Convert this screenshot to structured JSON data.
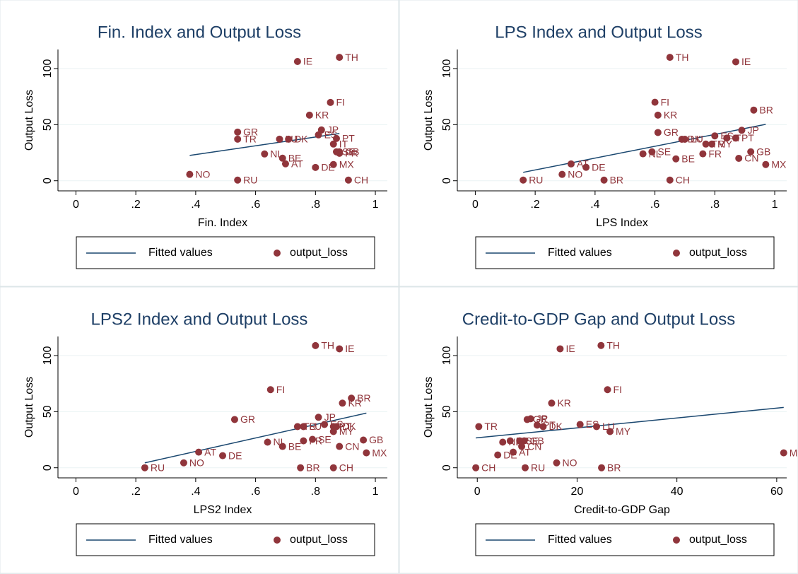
{
  "chart_data": [
    {
      "type": "scatter",
      "title": "Fin. Index and Output Loss",
      "x_label": "Fin. Index",
      "y_label": "Output Loss",
      "xlim": [
        -0.06,
        1.04
      ],
      "ylim": [
        -9,
        117
      ],
      "xticks": [
        0,
        {
          "value": 0.2,
          "label": ".2"
        },
        {
          "value": 0.4,
          "label": ".4"
        },
        {
          "value": 0.6,
          "label": ".6"
        },
        {
          "value": 0.8,
          "label": ".8"
        },
        1
      ],
      "yticks": [
        0,
        50,
        100
      ],
      "grid": true,
      "series": [
        {
          "name": "Fitted values",
          "type": "line",
          "color": "#1a476f",
          "x": [
            0.38,
            0.88
          ],
          "values": [
            22.6,
            42.1
          ]
        },
        {
          "name": "output_loss",
          "type": "scatter",
          "color": "#90353b",
          "labels": [
            "IE",
            "TH",
            "FI",
            "KR",
            "JP",
            "GR",
            "TR",
            "LU",
            "DK",
            "ES",
            "PT",
            "IT",
            "NL",
            "BE",
            "AT",
            "SE",
            "GB",
            "FR",
            "DE",
            "MX",
            "NO",
            "RU",
            "CH"
          ],
          "x": [
            0.74,
            0.88,
            0.85,
            0.78,
            0.82,
            0.54,
            0.54,
            0.68,
            0.71,
            0.81,
            0.87,
            0.86,
            0.63,
            0.69,
            0.7,
            0.87,
            0.88,
            0.88,
            0.8,
            0.86,
            0.38,
            0.54,
            0.91
          ],
          "values": [
            106.3,
            110,
            69.8,
            58.5,
            45.3,
            43.4,
            37.1,
            37.1,
            37.1,
            40.9,
            37.7,
            32.7,
            23.9,
            20.1,
            15.1,
            25.8,
            25.8,
            24.5,
            11.9,
            14.5,
            5.7,
            0.6,
            0.6
          ]
        }
      ]
    },
    {
      "type": "scatter",
      "title": "LPS Index and Output Loss",
      "x_label": "LPS Index",
      "y_label": "Output Loss",
      "xlim": [
        -0.06,
        1.04
      ],
      "ylim": [
        -9,
        117
      ],
      "xticks": [
        0,
        {
          "value": 0.2,
          "label": ".2"
        },
        {
          "value": 0.4,
          "label": ".4"
        },
        {
          "value": 0.6,
          "label": ".6"
        },
        {
          "value": 0.8,
          "label": ".8"
        },
        1
      ],
      "yticks": [
        0,
        50,
        100
      ],
      "grid": true,
      "series": [
        {
          "name": "Fitted values",
          "type": "line",
          "color": "#1a476f",
          "x": [
            0.16,
            0.97
          ],
          "values": [
            7.5,
            50.3
          ]
        },
        {
          "name": "output_loss",
          "type": "scatter",
          "color": "#90353b",
          "labels": [
            "TH",
            "IE",
            "FI",
            "KR",
            "BR",
            "JP",
            "GR",
            "DK",
            "LU",
            "ES",
            "IT",
            "PT",
            "TR",
            "MY",
            "NL",
            "SE",
            "FR",
            "BE",
            "GB",
            "CN",
            "MX",
            "AT",
            "DE",
            "NO",
            "RU",
            "BR",
            "CH"
          ],
          "x": [
            0.65,
            0.87,
            0.6,
            0.61,
            0.93,
            0.89,
            0.61,
            0.69,
            0.7,
            0.8,
            0.84,
            0.87,
            0.77,
            0.79,
            0.56,
            0.59,
            0.76,
            0.67,
            0.92,
            0.88,
            0.97,
            0.32,
            0.37,
            0.29,
            0.16,
            0.43,
            0.65
          ],
          "values": [
            110,
            106,
            70,
            58.5,
            63,
            45,
            43,
            37,
            37,
            40,
            38,
            38,
            32.7,
            32.7,
            24,
            25.8,
            24,
            19.5,
            25.8,
            20,
            14.5,
            15,
            12,
            5.7,
            0.6,
            0.6,
            0.6
          ]
        }
      ]
    },
    {
      "type": "scatter",
      "title": "LPS2 Index and Output Loss",
      "x_label": "LPS2 Index",
      "y_label": "Output Loss",
      "xlim": [
        -0.06,
        1.04
      ],
      "ylim": [
        -9,
        117
      ],
      "xticks": [
        0,
        {
          "value": 0.2,
          "label": ".2"
        },
        {
          "value": 0.4,
          "label": ".4"
        },
        {
          "value": 0.6,
          "label": ".6"
        },
        {
          "value": 0.8,
          "label": ".8"
        },
        1
      ],
      "yticks": [
        0,
        50,
        100
      ],
      "grid": true,
      "series": [
        {
          "name": "Fitted values",
          "type": "line",
          "color": "#1a476f",
          "x": [
            0.23,
            0.97
          ],
          "values": [
            4.4,
            48.7
          ]
        },
        {
          "name": "output_loss",
          "type": "scatter",
          "color": "#90353b",
          "labels": [
            "TH",
            "IE",
            "FI",
            "KR",
            "BR",
            "JP",
            "GR",
            "TR",
            "LU",
            "ES",
            "PT",
            "DK",
            "MY",
            "SE",
            "FR",
            "NL",
            "BE",
            "CN",
            "GB",
            "MX",
            "AT",
            "DE",
            "NO",
            "RU",
            "BR",
            "CH"
          ],
          "x": [
            0.8,
            0.88,
            0.65,
            0.89,
            0.92,
            0.81,
            0.53,
            0.74,
            0.76,
            0.83,
            0.86,
            0.87,
            0.86,
            0.79,
            0.76,
            0.64,
            0.69,
            0.88,
            0.96,
            0.97,
            0.41,
            0.49,
            0.36,
            0.23,
            0.75,
            0.86
          ],
          "values": [
            108.9,
            106,
            69.6,
            57.6,
            62,
            45,
            43,
            36.7,
            36.7,
            38.6,
            36.7,
            36.7,
            32.3,
            25.3,
            24,
            22.8,
            19,
            19,
            24.7,
            13.3,
            13.9,
            10.8,
            4.4,
            0,
            0,
            0
          ]
        }
      ]
    },
    {
      "type": "scatter",
      "title": "Credit-to-GDP Gap and Output Loss",
      "x_label": "Credit-to-GDP Gap",
      "y_label": "Output Loss",
      "xlim": [
        -4,
        62
      ],
      "ylim": [
        -9,
        117
      ],
      "xticks": [
        0,
        20,
        40,
        60
      ],
      "yticks": [
        0,
        50,
        100
      ],
      "grid": true,
      "series": [
        {
          "name": "Fitted values",
          "type": "line",
          "color": "#1a476f",
          "x": [
            -0.3,
            61.4
          ],
          "values": [
            26.6,
            53.8
          ]
        },
        {
          "name": "output_loss",
          "type": "scatter",
          "color": "#90353b",
          "labels": [
            "IE",
            "TH",
            "FI",
            "KR",
            "MX",
            "MY",
            "LU",
            "ES",
            "JP",
            "GR",
            "PT",
            "DK",
            "TR",
            "SE",
            "GB",
            "NL",
            "FR",
            "CN",
            "AT",
            "DE",
            "NO",
            "RU",
            "BR",
            "CH"
          ],
          "x": [
            16.6,
            24.8,
            26.1,
            14.9,
            61.4,
            26.6,
            23.9,
            20.6,
            10.7,
            10,
            12,
            13.2,
            0.3,
            8.5,
            9.4,
            5.1,
            6.6,
            8.9,
            7.2,
            4.1,
            15.9,
            9.6,
            24.9,
            -0.3
          ],
          "values": [
            106,
            109,
            69.6,
            57.6,
            13.3,
            32.3,
            36.7,
            38.6,
            43.7,
            43,
            38,
            36.7,
            36.7,
            24,
            24,
            22.8,
            24,
            19,
            13.9,
            11.4,
            4.4,
            0,
            0,
            0
          ]
        }
      ]
    }
  ]
}
